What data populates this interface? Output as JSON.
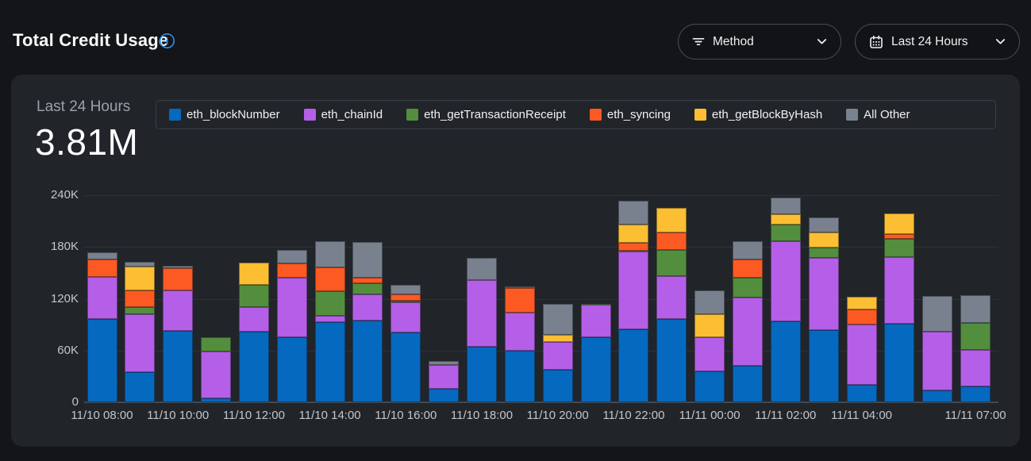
{
  "header": {
    "title": "Total Credit Usage",
    "method_filter": {
      "label": "Method"
    },
    "date_filter": {
      "label": "Last 24 Hours"
    }
  },
  "panel": {
    "stat_label": "Last 24 Hours",
    "stat_value": "3.81M"
  },
  "colors": {
    "page_background": "#131519",
    "card_background": "#212429",
    "accent_info": "#2f90e8",
    "grid_line": "#2e3237",
    "axis_text": "#c2c6cb"
  },
  "chart_data": {
    "type": "bar",
    "stacked": true,
    "title": "Total Credit Usage",
    "period": "Last 24 Hours",
    "total_label": "3.81M",
    "xlabel": "",
    "ylabel": "",
    "ylim": [
      0,
      240000
    ],
    "grid": true,
    "legend_position": "top",
    "y_ticks": [
      "0",
      "60K",
      "120K",
      "180K",
      "240K"
    ],
    "categories": [
      "11/10 08:00",
      "11/10 09:00",
      "11/10 10:00",
      "11/10 11:00",
      "11/10 12:00",
      "11/10 13:00",
      "11/10 14:00",
      "11/10 15:00",
      "11/10 16:00",
      "11/10 17:00",
      "11/10 18:00",
      "11/10 19:00",
      "11/10 20:00",
      "11/10 21:00",
      "11/10 22:00",
      "11/10 23:00",
      "11/11 00:00",
      "11/11 01:00",
      "11/11 02:00",
      "11/11 03:00",
      "11/11 04:00",
      "11/11 05:00",
      "11/11 06:00",
      "11/11 07:00"
    ],
    "x_tick_labels": [
      {
        "index": 0,
        "label": "11/10 08:00"
      },
      {
        "index": 2,
        "label": "11/10 10:00"
      },
      {
        "index": 4,
        "label": "11/10 12:00"
      },
      {
        "index": 6,
        "label": "11/10 14:00"
      },
      {
        "index": 8,
        "label": "11/10 16:00"
      },
      {
        "index": 10,
        "label": "11/10 18:00"
      },
      {
        "index": 12,
        "label": "11/10 20:00"
      },
      {
        "index": 14,
        "label": "11/10 22:00"
      },
      {
        "index": 16,
        "label": "11/11 00:00"
      },
      {
        "index": 18,
        "label": "11/11 02:00"
      },
      {
        "index": 20,
        "label": "11/11 04:00"
      },
      {
        "index": 23,
        "label": "11/11 07:00"
      }
    ],
    "series": [
      {
        "name": "eth_blockNumber",
        "color": "#0569bf",
        "values": [
          97000,
          35000,
          83000,
          5000,
          82000,
          75000,
          93000,
          95000,
          81000,
          16000,
          64000,
          60000,
          38000,
          75000,
          85000,
          97000,
          36000,
          42000,
          94000,
          84000,
          20000,
          91000,
          14000,
          18000
        ]
      },
      {
        "name": "eth_chainId",
        "color": "#b55fe8",
        "values": [
          48000,
          67000,
          47000,
          54000,
          28000,
          69000,
          7000,
          30000,
          35000,
          27000,
          78000,
          44000,
          32000,
          38000,
          90000,
          49000,
          39000,
          79000,
          93000,
          83000,
          70000,
          77000,
          68000,
          43000
        ]
      },
      {
        "name": "eth_getTransactionReceipt",
        "color": "#538e3e",
        "values": [
          0,
          8000,
          0,
          16000,
          26000,
          0,
          29000,
          13000,
          2000,
          0,
          0,
          0,
          0,
          1000,
          1000,
          31000,
          0,
          23000,
          19000,
          12000,
          0,
          21000,
          0,
          31000
        ]
      },
      {
        "name": "eth_syncing",
        "color": "#fd5a23",
        "values": [
          21000,
          20000,
          25000,
          0,
          0,
          17000,
          27000,
          6000,
          7000,
          0,
          0,
          28000,
          0,
          0,
          9000,
          20000,
          0,
          22000,
          0,
          0,
          18000,
          6000,
          0,
          0
        ]
      },
      {
        "name": "eth_getBlockByHash",
        "color": "#fcbe32",
        "values": [
          0,
          27000,
          0,
          0,
          26000,
          0,
          0,
          0,
          0,
          0,
          0,
          0,
          8000,
          0,
          21000,
          28000,
          27000,
          0,
          12000,
          18000,
          14000,
          24000,
          0,
          0
        ]
      },
      {
        "name": "All Other",
        "color": "#79818e",
        "values": [
          8000,
          6000,
          3000,
          0,
          0,
          16000,
          31000,
          42000,
          11000,
          5000,
          25000,
          2000,
          36000,
          0,
          28000,
          0,
          28000,
          21000,
          19000,
          17000,
          0,
          0,
          41000,
          32000
        ]
      }
    ]
  }
}
